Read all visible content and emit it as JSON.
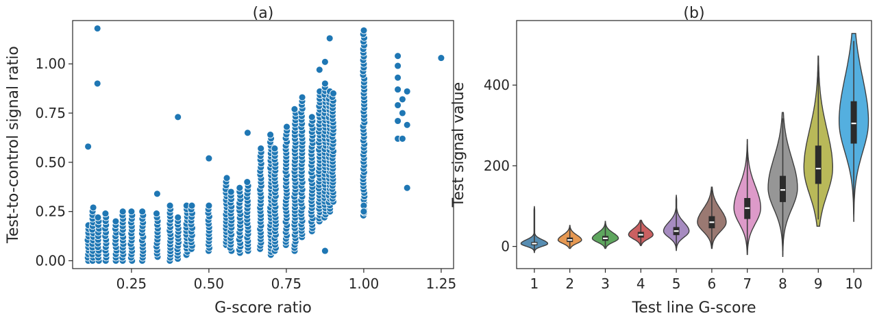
{
  "chart_data": [
    {
      "type": "scatter",
      "title": "(a)",
      "xlabel": "G-score ratio",
      "ylabel": "Test-to-control signal ratio",
      "xlim": [
        0.06,
        1.29
      ],
      "ylim": [
        -0.04,
        1.22
      ],
      "xticks": [
        0.25,
        0.5,
        0.75,
        1.0,
        1.25
      ],
      "xtick_labels": [
        "0.25",
        "0.50",
        "0.75",
        "1.00",
        "1.25"
      ],
      "yticks": [
        0.0,
        0.25,
        0.5,
        0.75,
        1.0
      ],
      "ytick_labels": [
        "0.00",
        "0.25",
        "0.50",
        "0.75",
        "1.00"
      ],
      "marker_color": "#1f77b4",
      "grid": false,
      "columns": [
        {
          "x": 0.11,
          "ymin": 0.0,
          "ymax": 0.18
        },
        {
          "x": 0.125,
          "ymin": 0.0,
          "ymax": 0.27
        },
        {
          "x": 0.143,
          "ymin": 0.0,
          "ymax": 0.22
        },
        {
          "x": 0.167,
          "ymin": 0.0,
          "ymax": 0.24
        },
        {
          "x": 0.2,
          "ymin": 0.0,
          "ymax": 0.2
        },
        {
          "x": 0.222,
          "ymin": 0.0,
          "ymax": 0.25
        },
        {
          "x": 0.25,
          "ymin": 0.0,
          "ymax": 0.25
        },
        {
          "x": 0.286,
          "ymin": 0.0,
          "ymax": 0.25
        },
        {
          "x": 0.333,
          "ymin": 0.02,
          "ymax": 0.24
        },
        {
          "x": 0.375,
          "ymin": 0.0,
          "ymax": 0.28
        },
        {
          "x": 0.4,
          "ymin": 0.01,
          "ymax": 0.22
        },
        {
          "x": 0.429,
          "ymin": 0.03,
          "ymax": 0.28
        },
        {
          "x": 0.444,
          "ymin": 0.06,
          "ymax": 0.28
        },
        {
          "x": 0.5,
          "ymin": 0.05,
          "ymax": 0.28
        },
        {
          "x": 0.556,
          "ymin": 0.08,
          "ymax": 0.42
        },
        {
          "x": 0.571,
          "ymin": 0.05,
          "ymax": 0.35
        },
        {
          "x": 0.6,
          "ymin": 0.04,
          "ymax": 0.37
        },
        {
          "x": 0.625,
          "ymin": 0.05,
          "ymax": 0.4
        },
        {
          "x": 0.667,
          "ymin": 0.06,
          "ymax": 0.57
        },
        {
          "x": 0.7,
          "ymin": 0.03,
          "ymax": 0.64
        },
        {
          "x": 0.714,
          "ymin": 0.05,
          "ymax": 0.57
        },
        {
          "x": 0.75,
          "ymin": 0.08,
          "ymax": 0.68
        },
        {
          "x": 0.778,
          "ymin": 0.05,
          "ymax": 0.77
        },
        {
          "x": 0.8,
          "ymin": 0.12,
          "ymax": 0.83
        },
        {
          "x": 0.833,
          "ymin": 0.15,
          "ymax": 0.73
        },
        {
          "x": 0.857,
          "ymin": 0.2,
          "ymax": 0.86
        },
        {
          "x": 0.875,
          "ymin": 0.22,
          "ymax": 0.9
        },
        {
          "x": 0.889,
          "ymin": 0.25,
          "ymax": 0.86
        },
        {
          "x": 0.9,
          "ymin": 0.3,
          "ymax": 0.85
        },
        {
          "x": 1.0,
          "ymin": 0.23,
          "ymax": 1.17
        }
      ],
      "points": [
        {
          "x": 0.11,
          "y": 0.58
        },
        {
          "x": 0.14,
          "y": 1.18
        },
        {
          "x": 0.14,
          "y": 0.9
        },
        {
          "x": 0.4,
          "y": 0.73
        },
        {
          "x": 0.5,
          "y": 0.52
        },
        {
          "x": 0.333,
          "y": 0.34
        },
        {
          "x": 0.625,
          "y": 0.65
        },
        {
          "x": 0.875,
          "y": 1.01
        },
        {
          "x": 0.857,
          "y": 0.97
        },
        {
          "x": 0.89,
          "y": 1.13
        },
        {
          "x": 0.875,
          "y": 0.05
        },
        {
          "x": 1.0,
          "y": 0.28
        },
        {
          "x": 1.0,
          "y": 0.25
        },
        {
          "x": 1.11,
          "y": 1.04
        },
        {
          "x": 1.11,
          "y": 0.99
        },
        {
          "x": 1.11,
          "y": 0.93
        },
        {
          "x": 1.11,
          "y": 0.87
        },
        {
          "x": 1.11,
          "y": 0.79
        },
        {
          "x": 1.11,
          "y": 0.71
        },
        {
          "x": 1.11,
          "y": 0.62
        },
        {
          "x": 1.125,
          "y": 0.82
        },
        {
          "x": 1.125,
          "y": 0.75
        },
        {
          "x": 1.125,
          "y": 0.62
        },
        {
          "x": 1.14,
          "y": 0.86
        },
        {
          "x": 1.14,
          "y": 0.69
        },
        {
          "x": 1.14,
          "y": 0.37
        },
        {
          "x": 1.25,
          "y": 1.03
        }
      ]
    },
    {
      "type": "violin",
      "title": "(b)",
      "xlabel": "Test line G-score",
      "ylabel": "Test signal value",
      "categories": [
        "1",
        "2",
        "3",
        "4",
        "5",
        "6",
        "7",
        "8",
        "9",
        "10"
      ],
      "ylim": [
        -55,
        560
      ],
      "yticks": [
        0,
        200,
        400
      ],
      "ytick_labels": [
        "0",
        "200",
        "400"
      ],
      "grid": false,
      "violins": [
        {
          "color": "#3274a1",
          "min": -15,
          "max": 100,
          "q1": 3,
          "median": 7,
          "q3": 11,
          "mode": 7,
          "spread": 7,
          "peak_width": 0.82
        },
        {
          "color": "#e1812c",
          "min": -5,
          "max": 52,
          "q1": 11,
          "median": 16,
          "q3": 22,
          "mode": 16,
          "spread": 9,
          "peak_width": 0.72
        },
        {
          "color": "#3a923a",
          "min": -5,
          "max": 62,
          "q1": 14,
          "median": 20,
          "q3": 26,
          "mode": 20,
          "spread": 10,
          "peak_width": 0.8
        },
        {
          "color": "#c03d3e",
          "min": 2,
          "max": 65,
          "q1": 22,
          "median": 29,
          "q3": 36,
          "mode": 29,
          "spread": 11,
          "peak_width": 0.75
        },
        {
          "color": "#9372b2",
          "min": -10,
          "max": 128,
          "q1": 28,
          "median": 38,
          "q3": 48,
          "mode": 38,
          "spread": 16,
          "peak_width": 0.78
        },
        {
          "color": "#845b53",
          "min": -5,
          "max": 147,
          "q1": 45,
          "median": 60,
          "q3": 75,
          "mode": 60,
          "spread": 24,
          "peak_width": 0.88
        },
        {
          "color": "#d684bd",
          "min": -20,
          "max": 265,
          "q1": 68,
          "median": 95,
          "q3": 120,
          "mode": 95,
          "spread": 40,
          "peak_width": 0.82
        },
        {
          "color": "#7f7f7f",
          "min": -25,
          "max": 332,
          "q1": 110,
          "median": 140,
          "q3": 175,
          "mode": 145,
          "spread": 55,
          "peak_width": 0.9
        },
        {
          "color": "#a9aa35",
          "min": 50,
          "max": 472,
          "q1": 155,
          "median": 193,
          "q3": 250,
          "mode": 195,
          "spread": 70,
          "peak_width": 0.88
        },
        {
          "color": "#2e9ed8",
          "min": 62,
          "max": 528,
          "q1": 255,
          "median": 305,
          "q3": 360,
          "mode": 310,
          "spread": 80,
          "peak_width": 0.9
        }
      ]
    }
  ]
}
